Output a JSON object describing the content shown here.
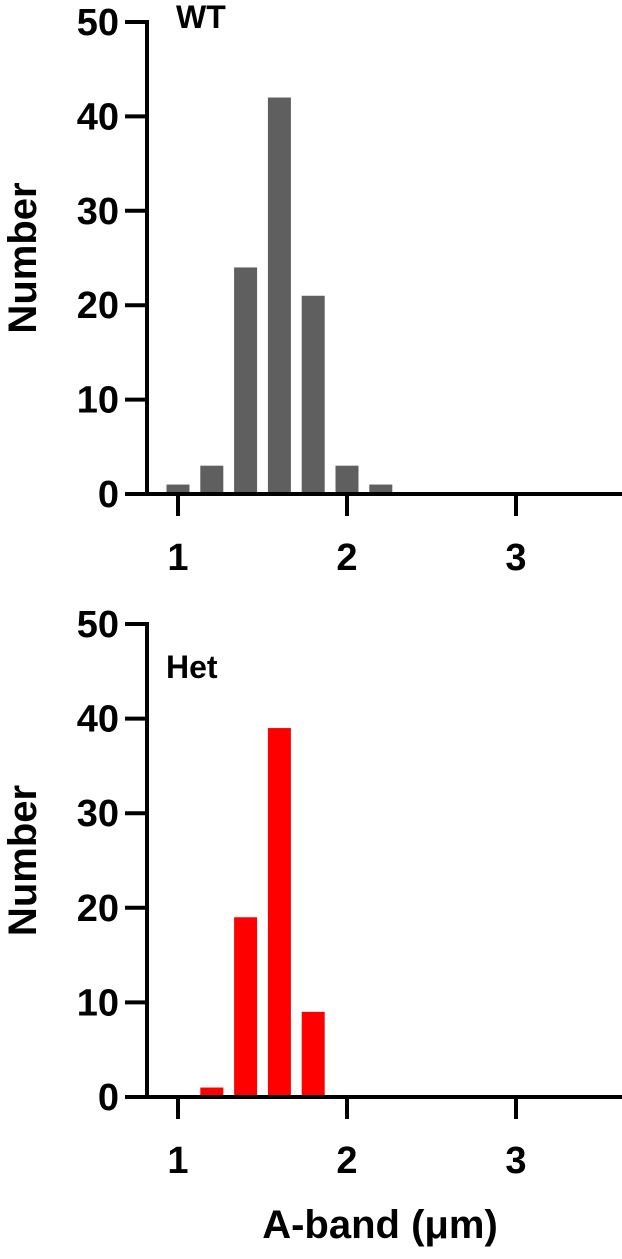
{
  "chart_data": [
    {
      "type": "bar",
      "title": "WT",
      "xlabel": "",
      "ylabel": "Number",
      "ylim": [
        0,
        50
      ],
      "xlim": [
        0.8,
        3.6
      ],
      "xticks": [
        1,
        2,
        3
      ],
      "yticks": [
        0,
        10,
        20,
        30,
        40,
        50
      ],
      "x": [
        1.0,
        1.2,
        1.4,
        1.6,
        1.8,
        2.0,
        2.2
      ],
      "values": [
        1,
        3,
        24,
        42,
        21,
        3,
        1
      ],
      "color": "#5f5f5f",
      "grid": false
    },
    {
      "type": "bar",
      "title": "Het",
      "xlabel": "A-band (μm)",
      "ylabel": "Number",
      "ylim": [
        0,
        50
      ],
      "xlim": [
        0.8,
        3.6
      ],
      "xticks": [
        1,
        2,
        3
      ],
      "yticks": [
        0,
        10,
        20,
        30,
        40,
        50
      ],
      "x": [
        1.2,
        1.4,
        1.6,
        1.8
      ],
      "values": [
        1,
        19,
        39,
        9
      ],
      "color": "#ff0000",
      "grid": false
    }
  ]
}
